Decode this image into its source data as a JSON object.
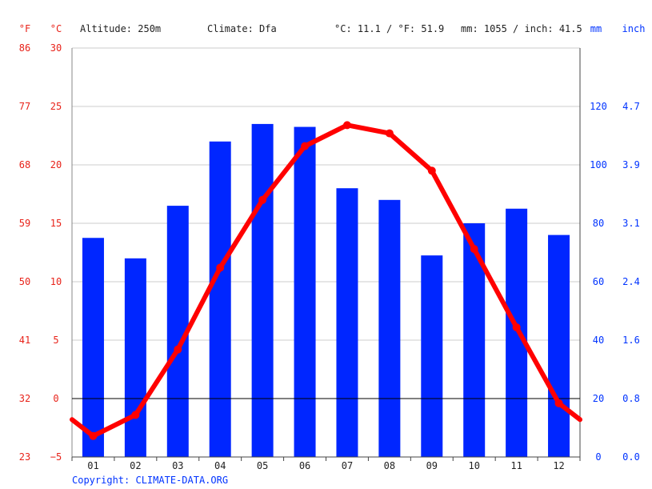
{
  "header": {
    "unit_f": "°F",
    "unit_c": "°C",
    "altitude": "Altitude: 250m",
    "climate": "Climate: Dfa",
    "temp_avg": "°C: 11.1 / °F: 51.9",
    "precip_total": "mm: 1055 / inch: 41.5",
    "unit_mm": "mm",
    "unit_inch": "inch"
  },
  "footer": {
    "copyright": "Copyright: CLIMATE-DATA.ORG"
  },
  "colors": {
    "temperature": "#ff0000",
    "precipitation": "#0026ff",
    "axis_left": "#e8231a",
    "axis_right": "#0033ff",
    "grid": "#cccccc"
  },
  "chart_data": {
    "type": "bar",
    "categories": [
      "01",
      "02",
      "03",
      "04",
      "05",
      "06",
      "07",
      "08",
      "09",
      "10",
      "11",
      "12"
    ],
    "series": [
      {
        "type": "bar",
        "axis": "right",
        "values": [
          75,
          68,
          86,
          108,
          114,
          113,
          92,
          88,
          69,
          80,
          85,
          76
        ]
      },
      {
        "type": "line",
        "axis": "left",
        "values": [
          -3.2,
          -1.4,
          4.2,
          11.2,
          17.0,
          21.6,
          23.4,
          22.7,
          19.5,
          12.8,
          6.1,
          -0.4
        ],
        "edge_values": [
          -1.8,
          -1.8
        ]
      }
    ],
    "axes": {
      "temp_c": {
        "ylim": [
          -5,
          30
        ],
        "ticks": [
          "−5",
          "0",
          "5",
          "10",
          "15",
          "20",
          "25",
          "30"
        ]
      },
      "temp_f": {
        "ticks": [
          "23",
          "32",
          "41",
          "50",
          "59",
          "68",
          "77",
          "86"
        ]
      },
      "precip_mm": {
        "ylim": [
          0,
          140
        ],
        "ticks": [
          "0",
          "20",
          "40",
          "60",
          "80",
          "100",
          "120"
        ]
      },
      "precip_inch": {
        "ticks": [
          "0.0",
          "0.8",
          "1.6",
          "2.4",
          "3.1",
          "3.9",
          "4.7"
        ]
      }
    },
    "grid": true,
    "zero_line": true
  }
}
